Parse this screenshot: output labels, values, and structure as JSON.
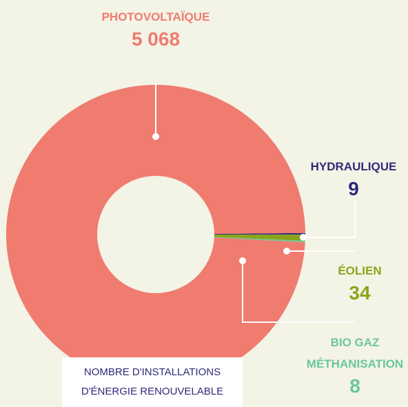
{
  "chart_data": {
    "type": "donut",
    "title": "NOMBRE D'INSTALLATIONS D'ÉNERGIE RENOUVELABLE",
    "categories": [
      "HYDRAULIQUE",
      "ÉOLIEN",
      "BIO GAZ MÉTHANISATION",
      "PHOTOVOLTAÏQUE"
    ],
    "values": [
      9,
      34,
      8,
      5068
    ],
    "value_labels": [
      "9",
      "34",
      "8",
      "5 068"
    ],
    "colors": [
      "#2e2a7a",
      "#8aa51a",
      "#6cc79a",
      "#f07b6f"
    ]
  }
}
